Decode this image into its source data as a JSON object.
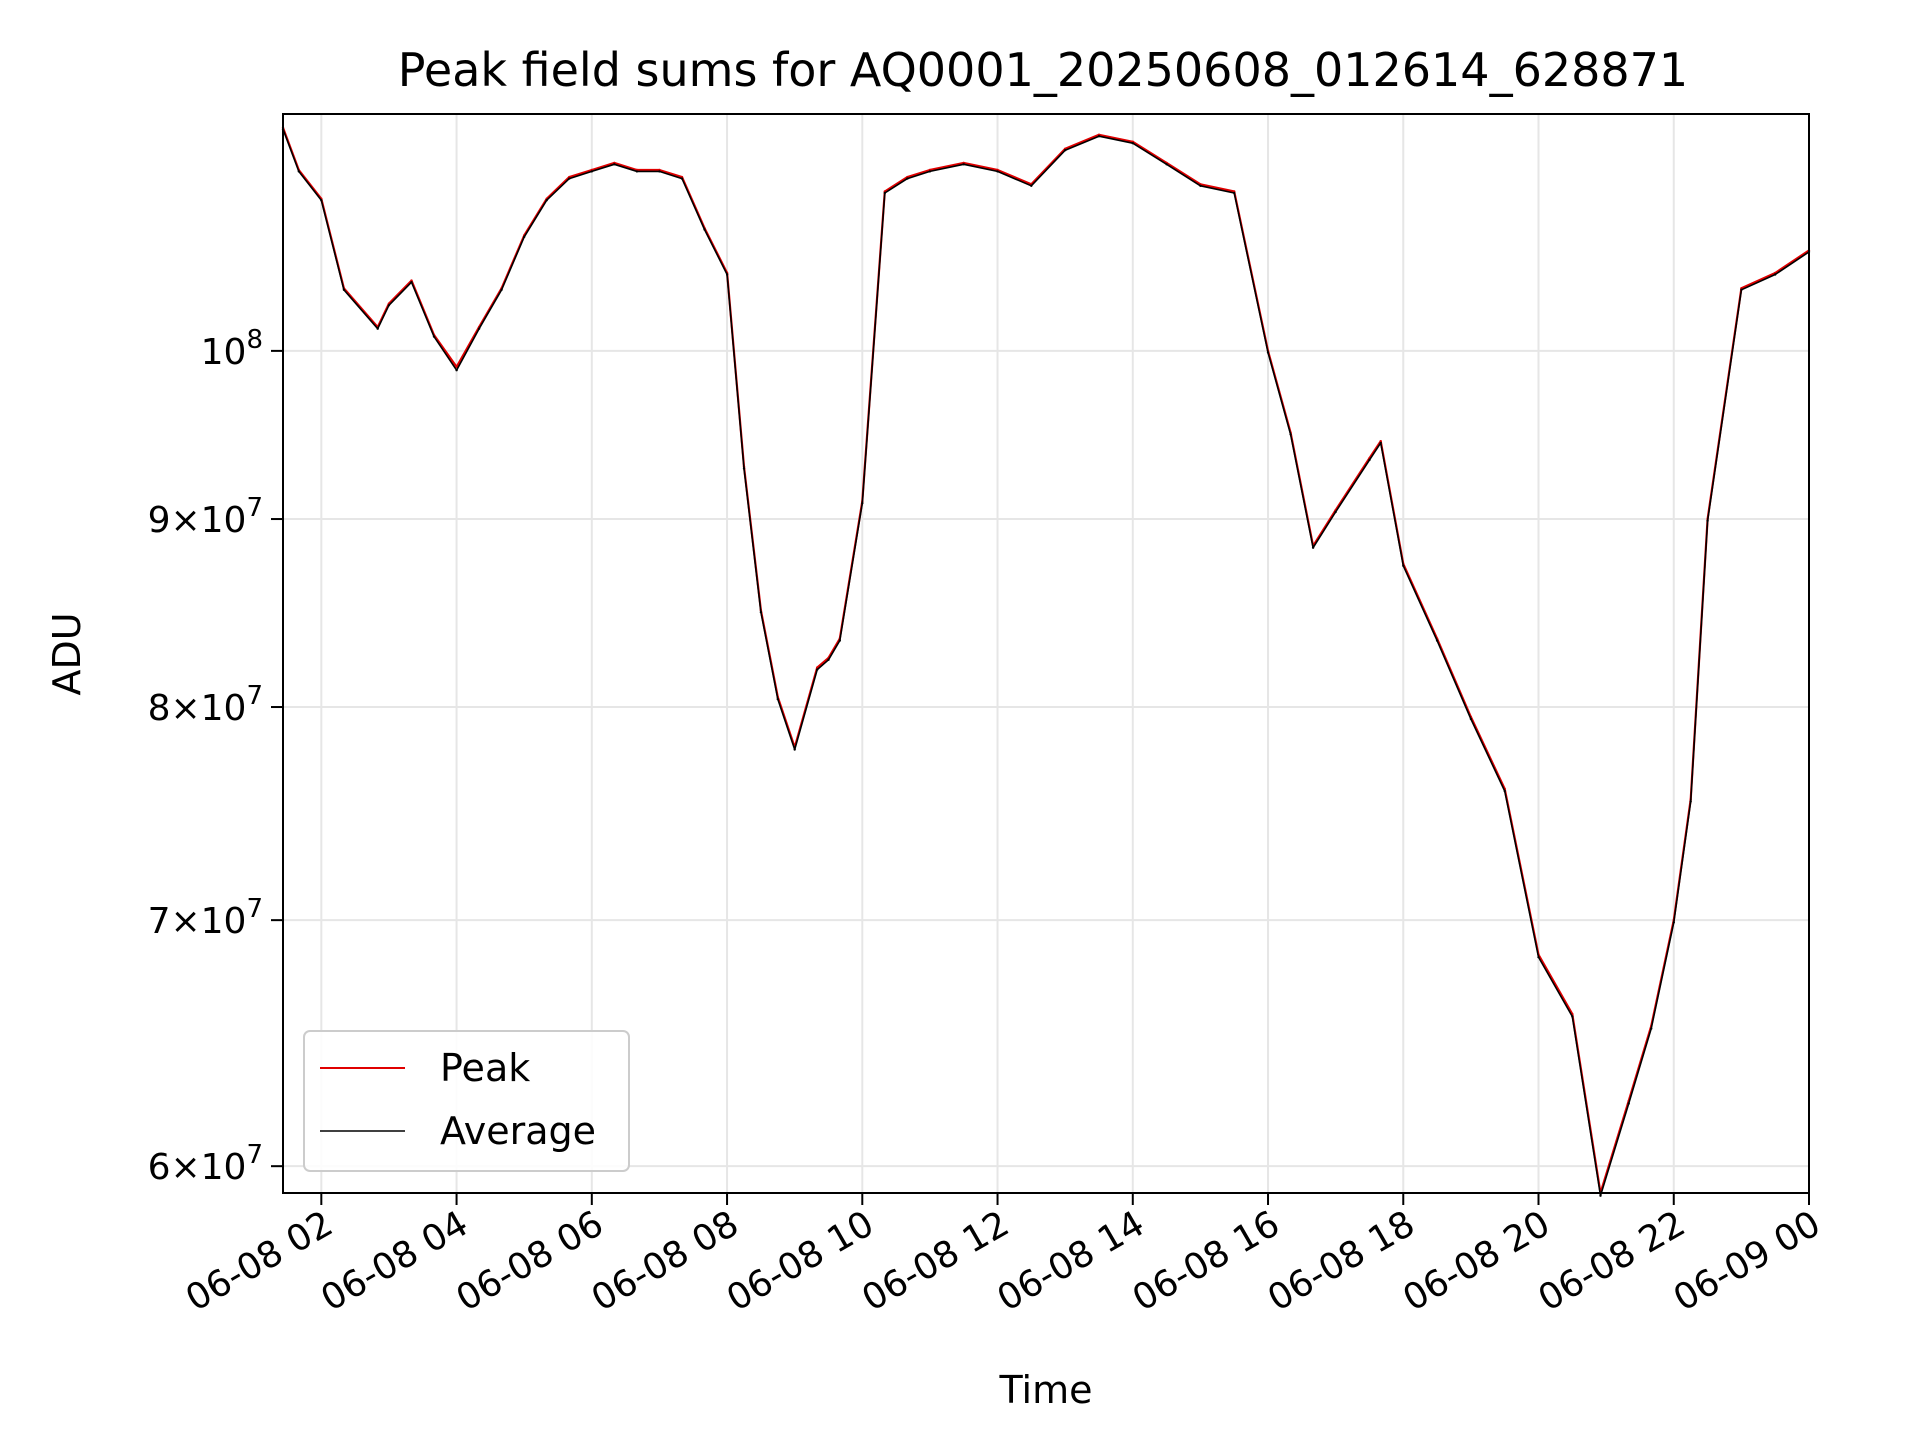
{
  "chart_data": {
    "type": "line",
    "title": "Peak field sums for AQ0001_20250608_012614_628871",
    "xlabel": "Time",
    "ylabel": "ADU",
    "yscale": "log",
    "xlim": [
      "06-08 01:26",
      "06-09 00:00"
    ],
    "ylim": [
      59000000,
      116000000
    ],
    "x_ticks": [
      "06-08 02",
      "06-08 04",
      "06-08 06",
      "06-08 08",
      "06-08 10",
      "06-08 12",
      "06-08 14",
      "06-08 16",
      "06-08 18",
      "06-08 20",
      "06-08 22",
      "06-09 00"
    ],
    "y_ticks": [
      {
        "value": 60000000,
        "base": "6",
        "exp": "7"
      },
      {
        "value": 70000000,
        "base": "7",
        "exp": "7"
      },
      {
        "value": 80000000,
        "base": "8",
        "exp": "7"
      },
      {
        "value": 90000000,
        "base": "9",
        "exp": "7"
      },
      {
        "value": 100000000,
        "base": "",
        "exp": "8"
      }
    ],
    "grid": true,
    "legend": "lower-left",
    "x": [
      "06-08 01:26",
      "06-08 01:40",
      "06-08 02:00",
      "06-08 02:20",
      "06-08 02:50",
      "06-08 03:00",
      "06-08 03:20",
      "06-08 03:40",
      "06-08 04:00",
      "06-08 04:20",
      "06-08 04:40",
      "06-08 05:00",
      "06-08 05:20",
      "06-08 05:40",
      "06-08 06:00",
      "06-08 06:20",
      "06-08 06:40",
      "06-08 07:00",
      "06-08 07:20",
      "06-08 07:40",
      "06-08 08:00",
      "06-08 08:15",
      "06-08 08:30",
      "06-08 08:45",
      "06-08 09:00",
      "06-08 09:20",
      "06-08 09:30",
      "06-08 09:40",
      "06-08 10:00",
      "06-08 10:20",
      "06-08 10:40",
      "06-08 11:00",
      "06-08 11:30",
      "06-08 12:00",
      "06-08 12:30",
      "06-08 13:00",
      "06-08 13:30",
      "06-08 14:00",
      "06-08 14:30",
      "06-08 15:00",
      "06-08 15:30",
      "06-08 16:00",
      "06-08 16:20",
      "06-08 16:40",
      "06-08 17:00",
      "06-08 17:30",
      "06-08 17:40",
      "06-08 18:00",
      "06-08 18:30",
      "06-08 19:00",
      "06-08 19:30",
      "06-08 20:00",
      "06-08 20:30",
      "06-08 20:55",
      "06-08 21:20",
      "06-08 21:40",
      "06-08 22:00",
      "06-08 22:15",
      "06-08 22:30",
      "06-08 23:00",
      "06-08 23:30",
      "06-09 00:00"
    ],
    "series": [
      {
        "name": "Peak",
        "color": "#e00000",
        "values": [
          115000000,
          112000000,
          110000000,
          104000000,
          101500000,
          103000000,
          104500000,
          101000000,
          99000000,
          101500000,
          104000000,
          107500000,
          110000000,
          111500000,
          112000000,
          112500000,
          112000000,
          112000000,
          111500000,
          108000000,
          105000000,
          93000000,
          85000000,
          80500000,
          78000000,
          82000000,
          82500000,
          83500000,
          91000000,
          110500000,
          111500000,
          112000000,
          112500000,
          112000000,
          111000000,
          113500000,
          114500000,
          114000000,
          112500000,
          111000000,
          110500000,
          100000000,
          95000000,
          88500000,
          90500000,
          93500000,
          94500000,
          87500000,
          83500000,
          79500000,
          76000000,
          68500000,
          66000000,
          59000000,
          62500000,
          65500000,
          70000000,
          75500000,
          90000000,
          104000000,
          105000000,
          106500000
        ]
      },
      {
        "name": "Average",
        "color": "#000000",
        "values": [
          114900000,
          111900000,
          109900000,
          103900000,
          101400000,
          102900000,
          104400000,
          100900000,
          98800000,
          101400000,
          103900000,
          107400000,
          109900000,
          111400000,
          111900000,
          112400000,
          111900000,
          111900000,
          111400000,
          107900000,
          104900000,
          92900000,
          84900000,
          80400000,
          77900000,
          81900000,
          82400000,
          83400000,
          90900000,
          110400000,
          111400000,
          111900000,
          112400000,
          111900000,
          110900000,
          113400000,
          114400000,
          113900000,
          112400000,
          110900000,
          110400000,
          99900000,
          94900000,
          88400000,
          90400000,
          93400000,
          94400000,
          87400000,
          83400000,
          79400000,
          75900000,
          68400000,
          65900000,
          58900000,
          62400000,
          65400000,
          69900000,
          75400000,
          89900000,
          103900000,
          104900000,
          106400000
        ]
      }
    ]
  }
}
